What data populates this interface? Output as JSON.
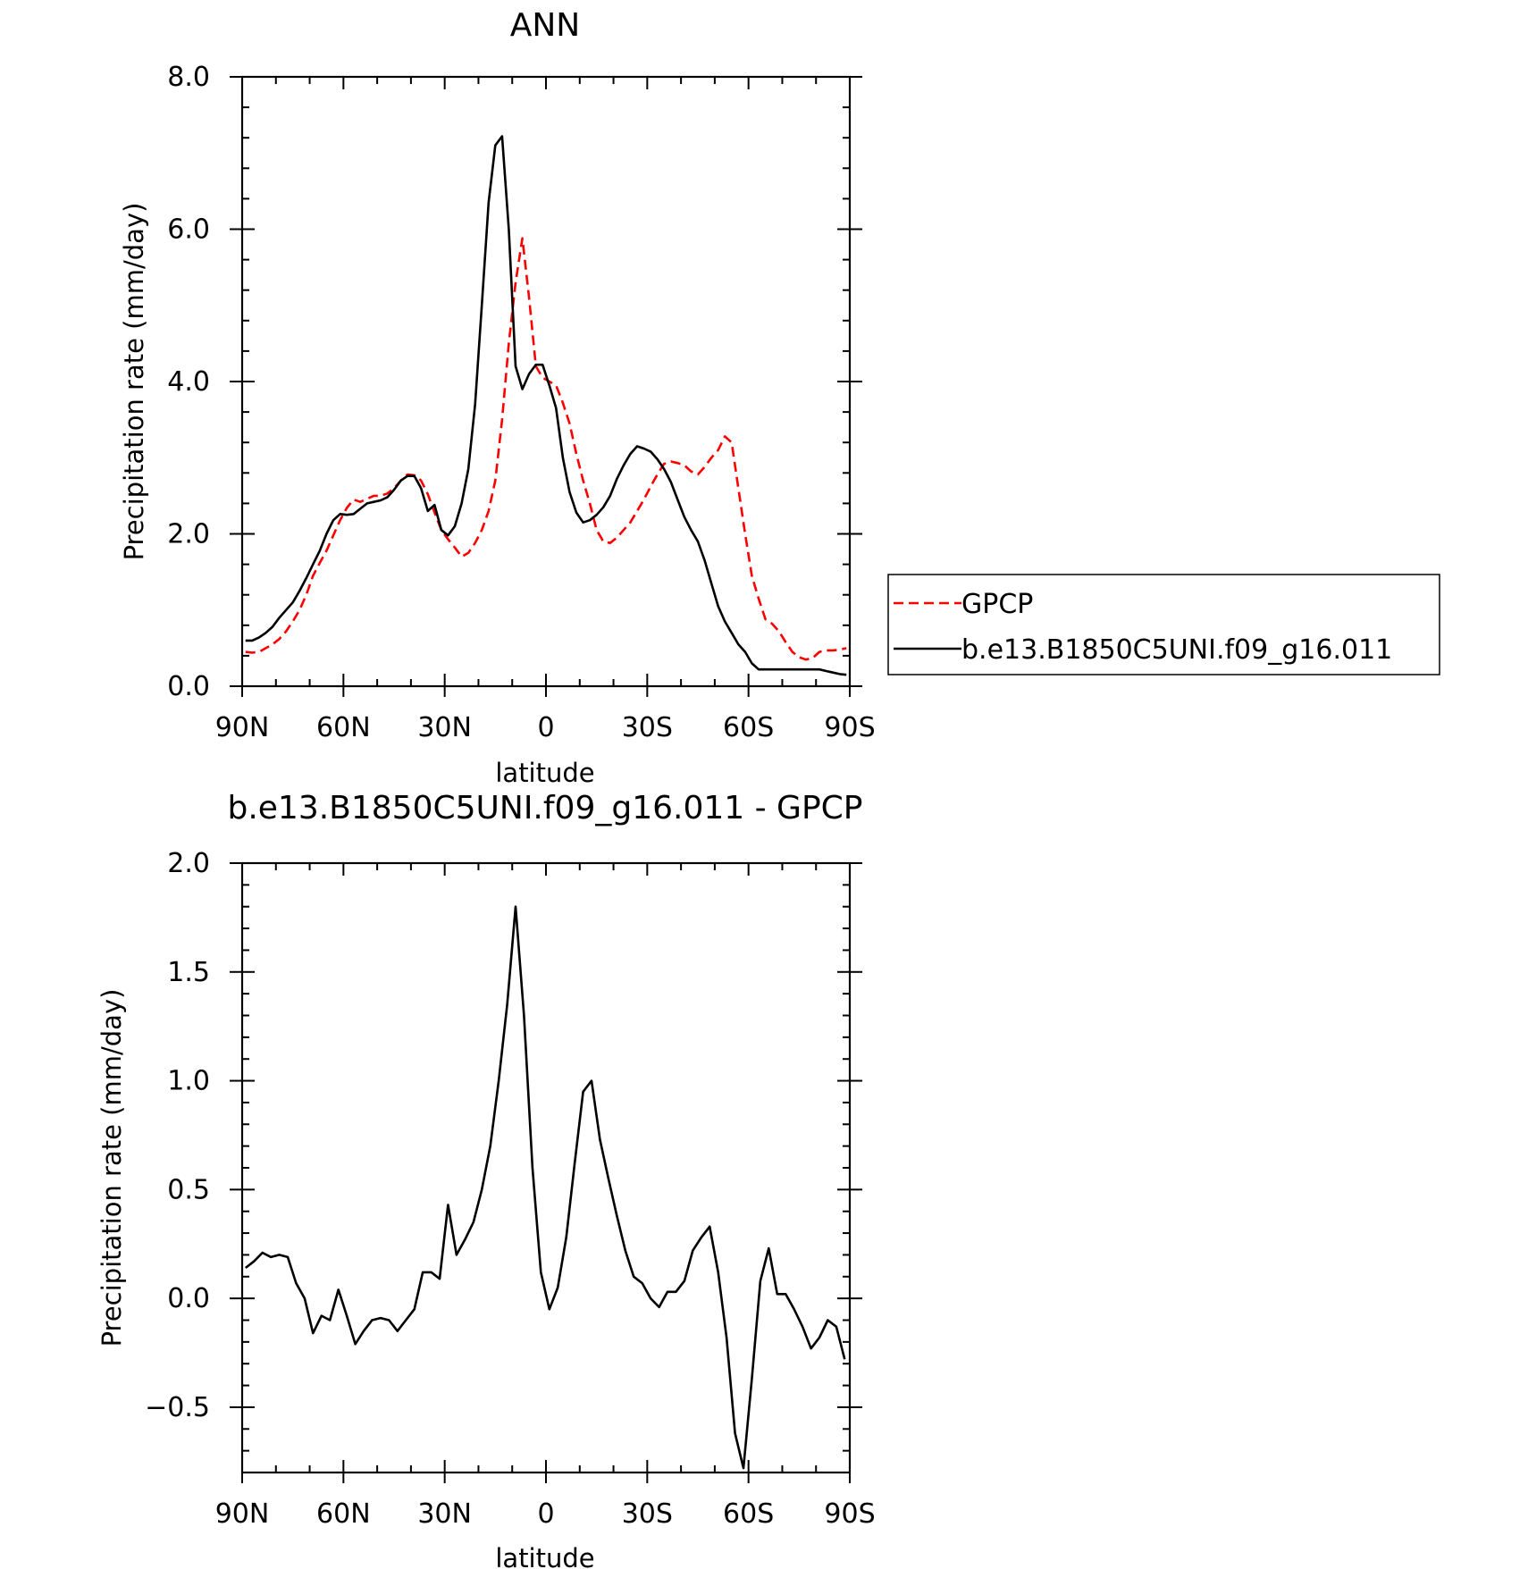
{
  "colors": {
    "model": "#000000",
    "obs": "#ff0000"
  },
  "chart_data": [
    {
      "type": "line",
      "title": "ANN",
      "xlabel": "latitude",
      "ylabel": "Precipitation rate (mm/day)",
      "xlim": [
        90,
        -90
      ],
      "ylim": [
        0,
        8
      ],
      "xticks": [
        90,
        60,
        30,
        0,
        -30,
        -60,
        -90
      ],
      "xticklabels": [
        "90N",
        "60N",
        "30N",
        "0",
        "30S",
        "60S",
        "90S"
      ],
      "yticks": [
        0,
        2,
        4,
        6,
        8
      ],
      "yticklabels": [
        "0.0",
        "2.0",
        "4.0",
        "6.0",
        "8.0"
      ],
      "legend": "right",
      "series": [
        {
          "name": "GPCP",
          "style": "dashed",
          "color": "#ff0000",
          "x": [
            89,
            87,
            85,
            83,
            81,
            79,
            77,
            75,
            73,
            71,
            69,
            67,
            65,
            63,
            61,
            59,
            57,
            55,
            53,
            51,
            49,
            47,
            45,
            43,
            41,
            39,
            37,
            35,
            33,
            31,
            29,
            27,
            25,
            23,
            21,
            19,
            17,
            15,
            13,
            11,
            9,
            7,
            5,
            3,
            1,
            -1,
            -3,
            -5,
            -7,
            -9,
            -11,
            -13,
            -15,
            -17,
            -19,
            -21,
            -23,
            -25,
            -27,
            -29,
            -31,
            -33,
            -35,
            -37,
            -39,
            -41,
            -43,
            -45,
            -47,
            -49,
            -51,
            -53,
            -55,
            -57,
            -59,
            -61,
            -63,
            -65,
            -67,
            -69,
            -71,
            -73,
            -75,
            -77,
            -79,
            -81,
            -83,
            -85,
            -87,
            -89
          ],
          "values": [
            0.45,
            0.44,
            0.45,
            0.5,
            0.55,
            0.62,
            0.72,
            0.85,
            1.0,
            1.2,
            1.45,
            1.62,
            1.78,
            1.98,
            2.18,
            2.34,
            2.45,
            2.42,
            2.46,
            2.5,
            2.5,
            2.53,
            2.6,
            2.7,
            2.78,
            2.77,
            2.7,
            2.52,
            2.28,
            2.05,
            1.93,
            1.82,
            1.7,
            1.75,
            1.88,
            2.05,
            2.3,
            2.7,
            3.5,
            4.5,
            5.3,
            5.88,
            5.1,
            4.2,
            4.05,
            4.0,
            3.95,
            3.72,
            3.45,
            3.05,
            2.7,
            2.4,
            2.05,
            1.9,
            1.88,
            1.95,
            2.05,
            2.15,
            2.3,
            2.45,
            2.62,
            2.78,
            2.92,
            2.95,
            2.93,
            2.9,
            2.82,
            2.78,
            2.88,
            3.0,
            3.1,
            3.28,
            3.2,
            2.6,
            2.0,
            1.45,
            1.15,
            0.88,
            0.82,
            0.72,
            0.58,
            0.45,
            0.38,
            0.35,
            0.37,
            0.45,
            0.47,
            0.47,
            0.48,
            0.5
          ]
        },
        {
          "name": "b.e13.B1850C5UNI.f09_g16.011",
          "style": "solid",
          "color": "#000000",
          "x": [
            89,
            87,
            85,
            83,
            81,
            79,
            77,
            75,
            73,
            71,
            69,
            67,
            65,
            63,
            61,
            59,
            57,
            55,
            53,
            51,
            49,
            47,
            45,
            43,
            41,
            39,
            37,
            35,
            33,
            31,
            29,
            27,
            25,
            23,
            21,
            19,
            17,
            15,
            13,
            11,
            9,
            7,
            5,
            3,
            1,
            -1,
            -3,
            -5,
            -7,
            -9,
            -11,
            -13,
            -15,
            -17,
            -19,
            -21,
            -23,
            -25,
            -27,
            -29,
            -31,
            -33,
            -35,
            -37,
            -39,
            -41,
            -43,
            -45,
            -47,
            -49,
            -51,
            -53,
            -55,
            -57,
            -59,
            -61,
            -63,
            -65,
            -67,
            -69,
            -71,
            -73,
            -75,
            -77,
            -79,
            -81,
            -83,
            -85,
            -87,
            -89
          ],
          "values": [
            0.6,
            0.6,
            0.64,
            0.7,
            0.78,
            0.9,
            1.0,
            1.1,
            1.25,
            1.42,
            1.6,
            1.78,
            2.0,
            2.18,
            2.26,
            2.25,
            2.26,
            2.33,
            2.4,
            2.42,
            2.44,
            2.48,
            2.58,
            2.7,
            2.76,
            2.76,
            2.6,
            2.3,
            2.38,
            2.05,
            1.98,
            2.1,
            2.4,
            2.85,
            3.7,
            5.0,
            6.35,
            7.1,
            7.22,
            6.0,
            4.2,
            3.9,
            4.1,
            4.22,
            4.22,
            3.95,
            3.65,
            3.0,
            2.55,
            2.28,
            2.15,
            2.18,
            2.25,
            2.35,
            2.5,
            2.72,
            2.9,
            3.05,
            3.15,
            3.12,
            3.08,
            2.98,
            2.85,
            2.68,
            2.45,
            2.22,
            2.05,
            1.9,
            1.65,
            1.35,
            1.05,
            0.85,
            0.7,
            0.55,
            0.45,
            0.3,
            0.22,
            0.22,
            0.22,
            0.22,
            0.22,
            0.22,
            0.22,
            0.22,
            0.22,
            0.22,
            0.2,
            0.18,
            0.16,
            0.15
          ]
        }
      ]
    },
    {
      "type": "line",
      "title": "b.e13.B1850C5UNI.f09_g16.011 - GPCP",
      "xlabel": "latitude",
      "ylabel": "Precipitation rate (mm/day)",
      "xlim": [
        90,
        -90
      ],
      "ylim": [
        -0.8,
        2.0
      ],
      "xticks": [
        90,
        60,
        30,
        0,
        -30,
        -60,
        -90
      ],
      "xticklabels": [
        "90N",
        "60N",
        "30N",
        "0",
        "30S",
        "60S",
        "90S"
      ],
      "yticks": [
        -0.5,
        0,
        0.5,
        1.0,
        1.5,
        2.0
      ],
      "yticklabels": [
        "−0.5",
        "0.0",
        "0.5",
        "1.0",
        "1.5",
        "2.0"
      ],
      "series": [
        {
          "style": "solid",
          "color": "#000000",
          "x": [
            89,
            86.5,
            84,
            81.5,
            79,
            76.5,
            74,
            71.5,
            69,
            66.5,
            64,
            61.5,
            59,
            56.5,
            54,
            51.5,
            49,
            46.5,
            44,
            41.5,
            39,
            36.5,
            34,
            31.5,
            29,
            26.5,
            24,
            21.5,
            19,
            16.5,
            14,
            11.5,
            9,
            6.5,
            4,
            1.5,
            -1,
            -3.5,
            -6,
            -8.5,
            -11,
            -13.5,
            -16,
            -18.5,
            -21,
            -23.5,
            -26,
            -28.5,
            -31,
            -33.5,
            -36,
            -38.5,
            -41,
            -43.5,
            -46,
            -48.5,
            -51,
            -53.5,
            -56,
            -58.5,
            -61,
            -63.5,
            -66,
            -68.5,
            -71,
            -73.5,
            -76,
            -78.5,
            -81,
            -83.5,
            -86,
            -88.5
          ],
          "values": [
            0.14,
            0.17,
            0.21,
            0.19,
            0.2,
            0.19,
            0.07,
            0.0,
            -0.16,
            -0.08,
            -0.1,
            0.04,
            -0.08,
            -0.21,
            -0.15,
            -0.1,
            -0.09,
            -0.1,
            -0.15,
            -0.1,
            -0.05,
            0.12,
            0.12,
            0.09,
            0.43,
            0.2,
            0.27,
            0.35,
            0.5,
            0.7,
            1.0,
            1.35,
            1.8,
            1.3,
            0.6,
            0.12,
            -0.05,
            0.05,
            0.28,
            0.62,
            0.95,
            1.0,
            0.73,
            0.55,
            0.38,
            0.22,
            0.1,
            0.07,
            0.0,
            -0.04,
            0.03,
            0.03,
            0.08,
            0.22,
            0.28,
            0.33,
            0.12,
            -0.18,
            -0.62,
            -0.78,
            -0.37,
            0.08,
            0.23,
            0.02,
            0.02,
            -0.05,
            -0.13,
            -0.23,
            -0.18,
            -0.1,
            -0.13,
            -0.28
          ]
        }
      ]
    }
  ]
}
